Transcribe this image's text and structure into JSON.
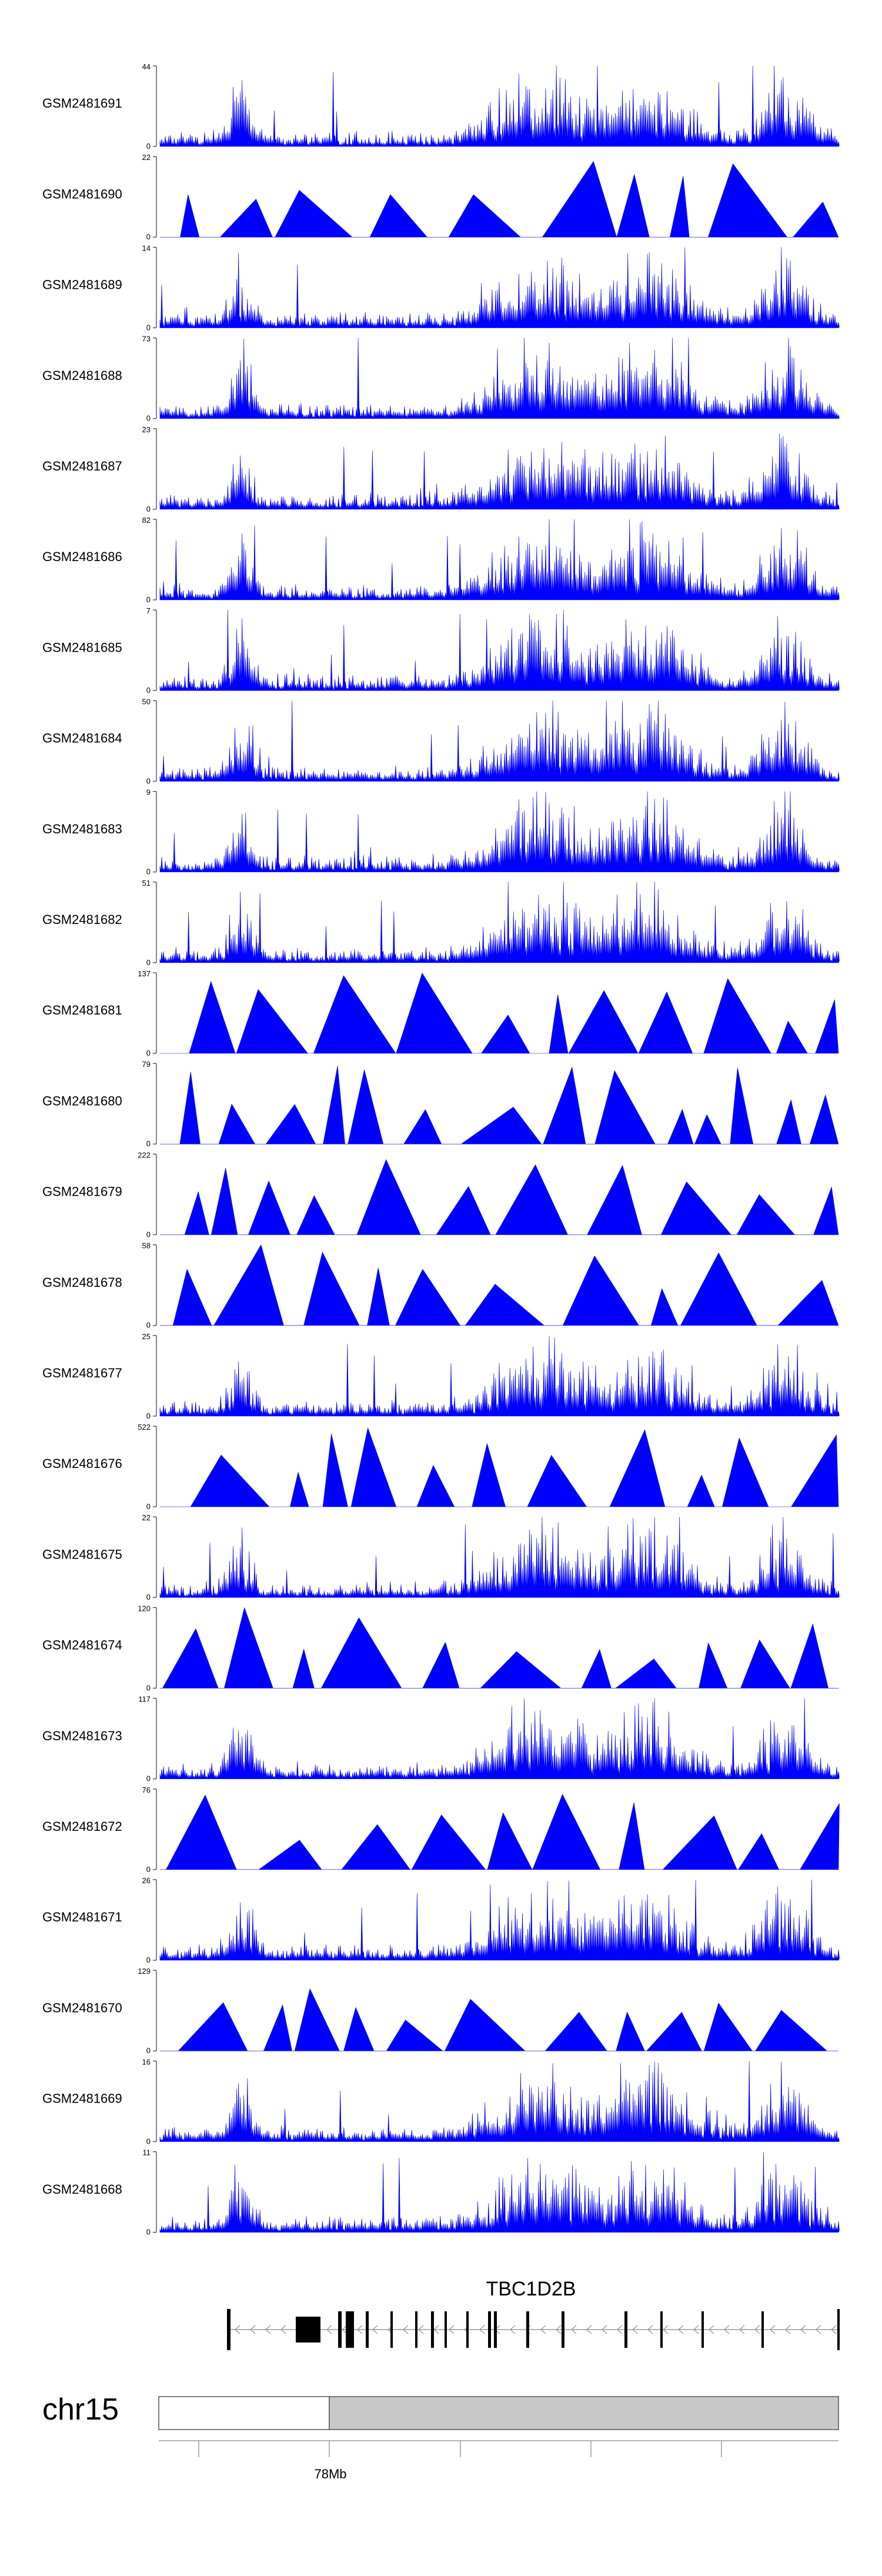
{
  "chart_data": {
    "type": "area",
    "description_free": true,
    "color": "#0000ff",
    "x_axis": {
      "chromosome": "chr15",
      "major_tick_label": "78Mb"
    },
    "tracks": [
      {
        "name": "GSM2481691",
        "ymax": "44",
        "ymin": "0",
        "style": "spiky"
      },
      {
        "name": "GSM2481690",
        "ymax": "22",
        "ymin": "0",
        "style": "triangles"
      },
      {
        "name": "GSM2481689",
        "ymax": "14",
        "ymin": "0",
        "style": "spiky"
      },
      {
        "name": "GSM2481688",
        "ymax": "73",
        "ymin": "0",
        "style": "spiky"
      },
      {
        "name": "GSM2481687",
        "ymax": "23",
        "ymin": "0",
        "style": "spiky"
      },
      {
        "name": "GSM2481686",
        "ymax": "82",
        "ymin": "0",
        "style": "spiky"
      },
      {
        "name": "GSM2481685",
        "ymax": "7",
        "ymin": "0",
        "style": "spiky"
      },
      {
        "name": "GSM2481684",
        "ymax": "50",
        "ymin": "0",
        "style": "spiky"
      },
      {
        "name": "GSM2481683",
        "ymax": "9",
        "ymin": "0",
        "style": "spiky"
      },
      {
        "name": "GSM2481682",
        "ymax": "51",
        "ymin": "0",
        "style": "spiky"
      },
      {
        "name": "GSM2481681",
        "ymax": "137",
        "ymin": "0",
        "style": "triangles"
      },
      {
        "name": "GSM2481680",
        "ymax": "79",
        "ymin": "0",
        "style": "triangles"
      },
      {
        "name": "GSM2481679",
        "ymax": "222",
        "ymin": "0",
        "style": "triangles"
      },
      {
        "name": "GSM2481678",
        "ymax": "58",
        "ymin": "0",
        "style": "triangles"
      },
      {
        "name": "GSM2481677",
        "ymax": "25",
        "ymin": "0",
        "style": "spiky"
      },
      {
        "name": "GSM2481676",
        "ymax": "522",
        "ymin": "0",
        "style": "triangles"
      },
      {
        "name": "GSM2481675",
        "ymax": "22",
        "ymin": "0",
        "style": "spiky"
      },
      {
        "name": "GSM2481674",
        "ymax": "120",
        "ymin": "0",
        "style": "triangles"
      },
      {
        "name": "GSM2481673",
        "ymax": "117",
        "ymin": "0",
        "style": "spiky"
      },
      {
        "name": "GSM2481672",
        "ymax": "76",
        "ymin": "0",
        "style": "triangles"
      },
      {
        "name": "GSM2481671",
        "ymax": "26",
        "ymin": "0",
        "style": "spiky"
      },
      {
        "name": "GSM2481670",
        "ymax": "129",
        "ymin": "0",
        "style": "triangles"
      },
      {
        "name": "GSM2481669",
        "ymax": "16",
        "ymin": "0",
        "style": "spiky"
      },
      {
        "name": "GSM2481668",
        "ymax": "11",
        "ymin": "0",
        "style": "spiky"
      }
    ],
    "gene": {
      "name": "TBC1D2B",
      "strand": "minus"
    }
  }
}
